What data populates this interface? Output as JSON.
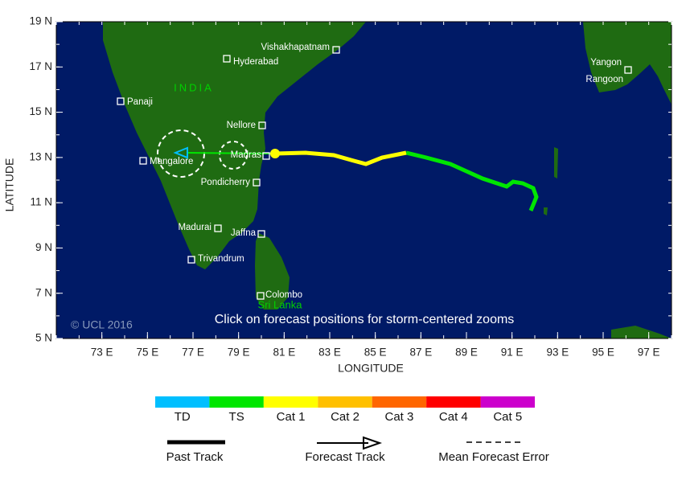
{
  "map": {
    "xlabel": "LONGITUDE",
    "ylabel": "LATITUDE",
    "xlim": [
      71,
      98
    ],
    "ylim": [
      5,
      19
    ],
    "xticks": [
      {
        "value": 73,
        "label": "73 E"
      },
      {
        "value": 75,
        "label": "75 E"
      },
      {
        "value": 77,
        "label": "77 E"
      },
      {
        "value": 79,
        "label": "79 E"
      },
      {
        "value": 81,
        "label": "81 E"
      },
      {
        "value": 83,
        "label": "83 E"
      },
      {
        "value": 85,
        "label": "85 E"
      },
      {
        "value": 87,
        "label": "87 E"
      },
      {
        "value": 89,
        "label": "89 E"
      },
      {
        "value": 91,
        "label": "91 E"
      },
      {
        "value": 93,
        "label": "93 E"
      },
      {
        "value": 95,
        "label": "95 E"
      },
      {
        "value": 97,
        "label": "97 E"
      }
    ],
    "yticks": [
      {
        "value": 5,
        "label": "5 N"
      },
      {
        "value": 7,
        "label": "7 N"
      },
      {
        "value": 9,
        "label": "9 N"
      },
      {
        "value": 11,
        "label": "11 N"
      },
      {
        "value": 13,
        "label": "13 N"
      },
      {
        "value": 15,
        "label": "15 N"
      },
      {
        "value": 17,
        "label": "17 N"
      },
      {
        "value": 19,
        "label": "19 N"
      }
    ],
    "cities": [
      "Vishakhapatnam",
      "Hyderabad",
      "Panaji",
      "Nellore",
      "Mangalore",
      "Madras",
      "Pondicherry",
      "Madurai",
      "Jaffna",
      "Trivandrum",
      "Colombo",
      "Yangon",
      "Rangoon"
    ],
    "regions": [
      "INDIA",
      "Sri Lanka"
    ],
    "copyright": "© UCL 2016",
    "note": "Click on forecast positions for storm-centered zooms"
  },
  "legend": {
    "categories": [
      {
        "name": "TD",
        "color": "#00bfff"
      },
      {
        "name": "TS",
        "color": "#00e600"
      },
      {
        "name": "Cat 1",
        "color": "#ffff00"
      },
      {
        "name": "Cat 2",
        "color": "#ffc000"
      },
      {
        "name": "Cat 3",
        "color": "#ff6600"
      },
      {
        "name": "Cat 4",
        "color": "#ff0000"
      },
      {
        "name": "Cat 5",
        "color": "#cc00cc"
      }
    ],
    "tracks": [
      "Past Track",
      "Forecast Track",
      "Mean Forecast Error"
    ]
  }
}
